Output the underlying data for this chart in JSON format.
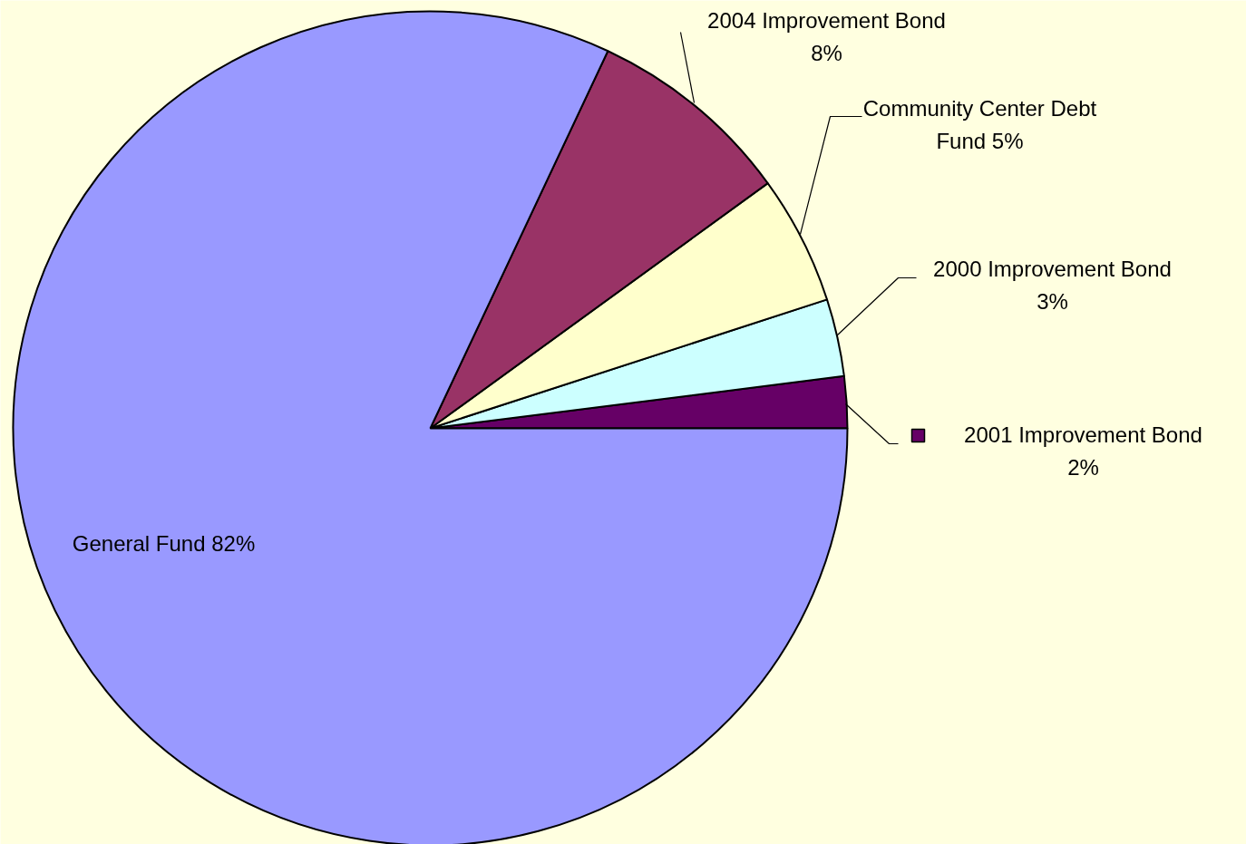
{
  "chart_data": {
    "type": "pie",
    "categories": [
      "2001 Improvement Bond",
      "2000 Improvement Bond",
      "Community Center Debt Fund",
      "2004 Improvement Bond",
      "General Fund"
    ],
    "values": [
      2,
      3,
      5,
      8,
      82
    ],
    "value_labels": [
      "2%",
      "3%",
      "5%",
      "8%",
      "82%"
    ],
    "colors": [
      "#660066",
      "#ccffff",
      "#ffffcc",
      "#993366",
      "#9999ff"
    ],
    "legend": "right"
  }
}
